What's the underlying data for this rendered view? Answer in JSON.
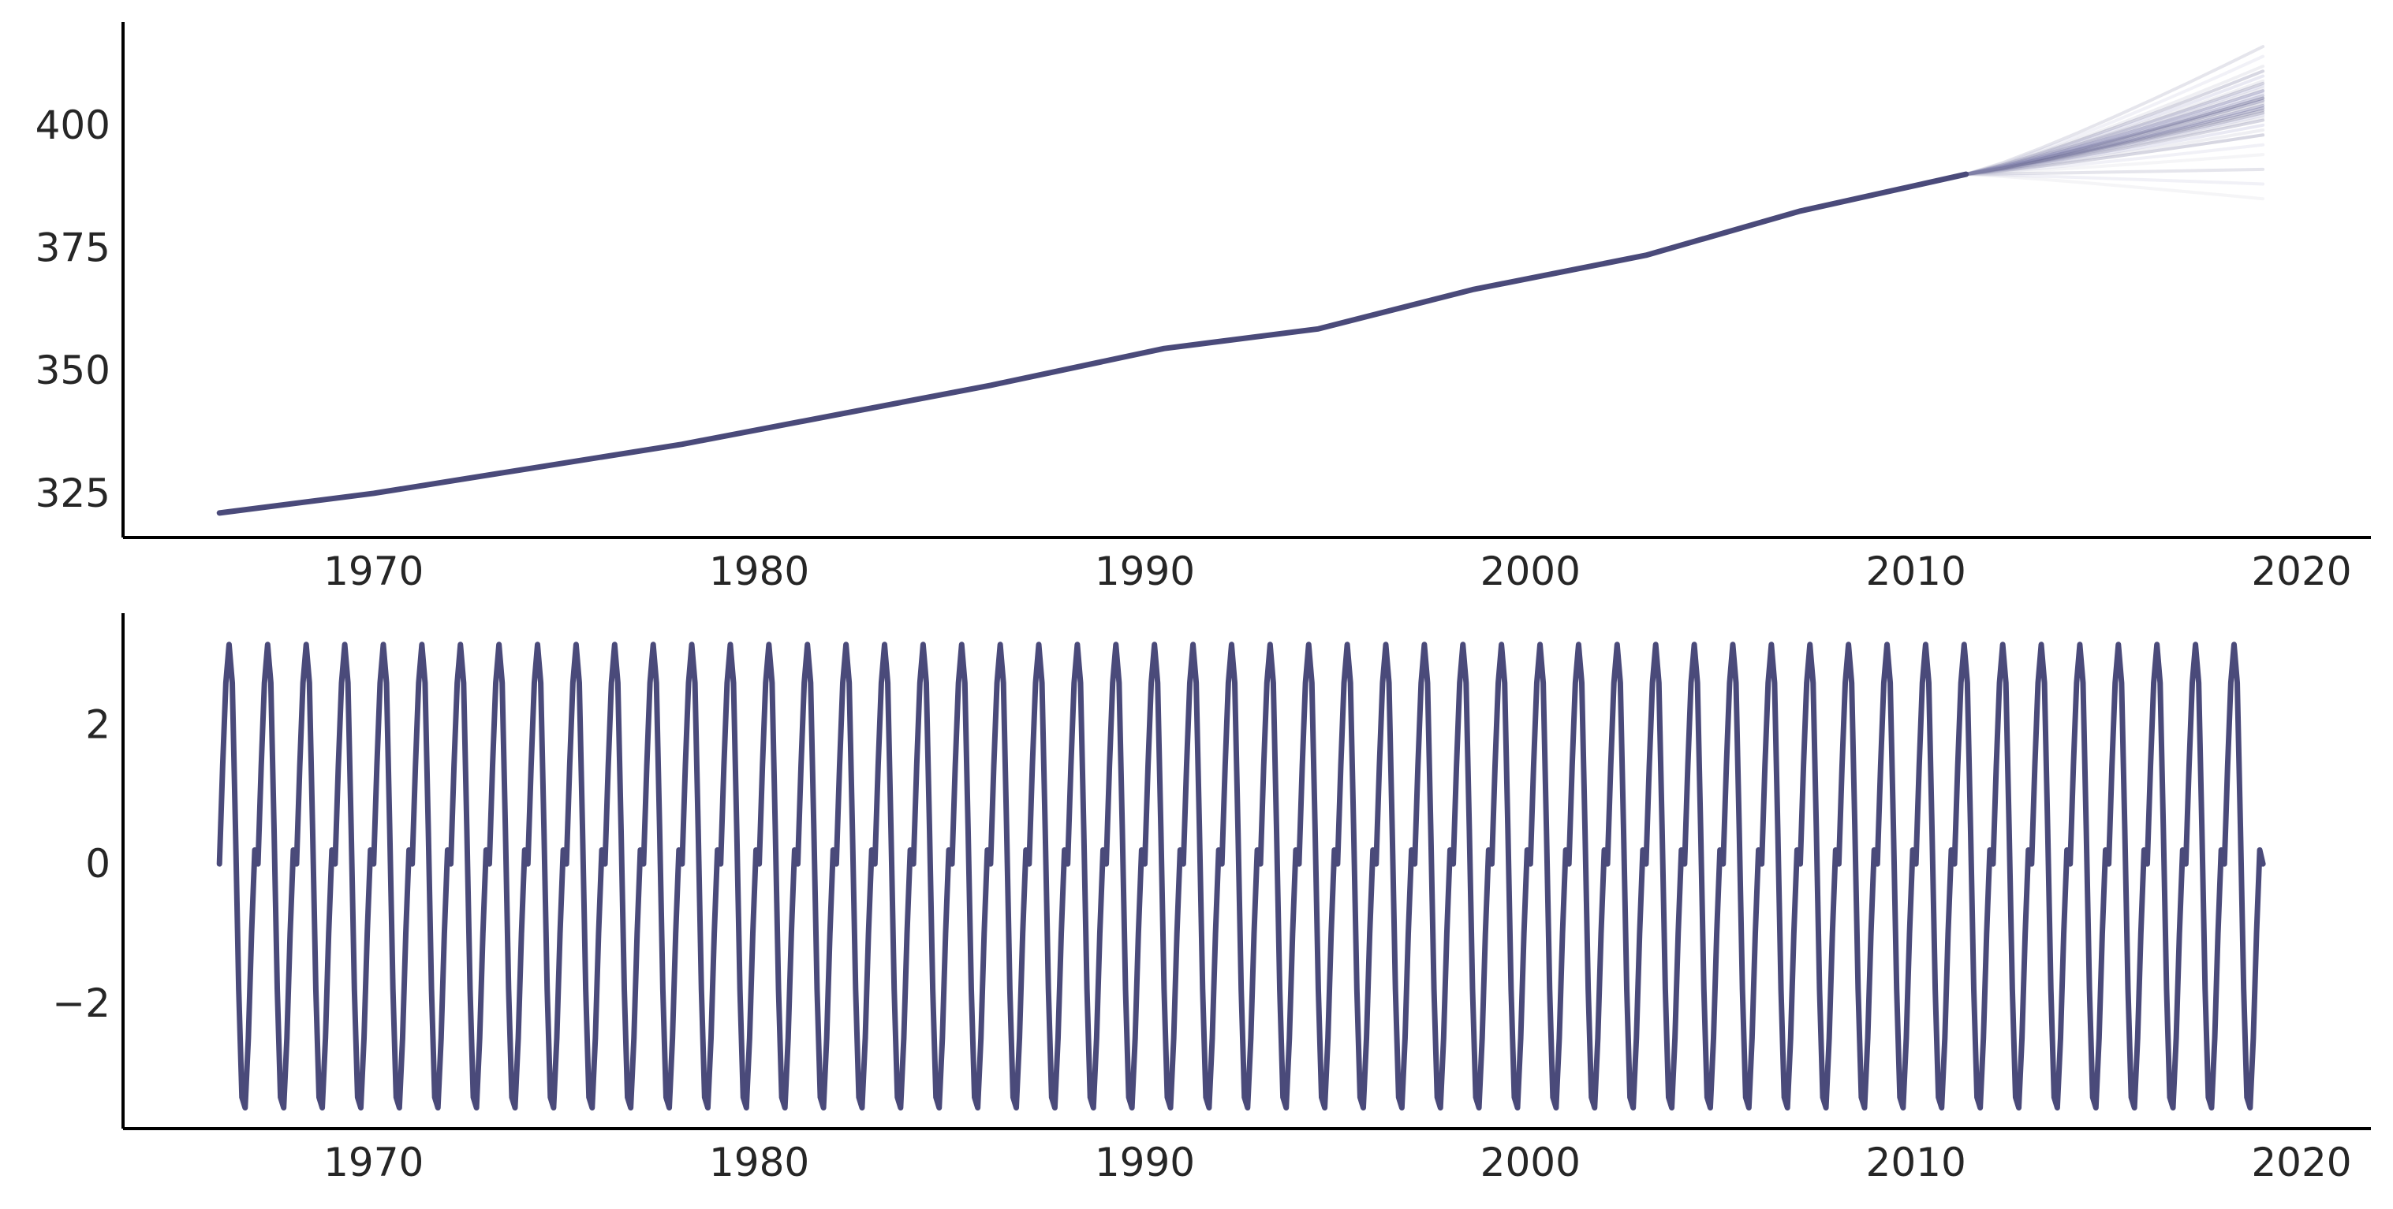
{
  "chart_data": [
    {
      "type": "line",
      "title": "",
      "xlabel": "",
      "ylabel": "",
      "xlim": [
        1963.5,
        2021.8
      ],
      "ylim": [
        316,
        421
      ],
      "xticks": [
        1970,
        1980,
        1990,
        2000,
        2010,
        2020
      ],
      "yticks": [
        325,
        350,
        375,
        400
      ],
      "xtick_labels": [
        "1970",
        "1980",
        "1990",
        "2000",
        "2010",
        "2020"
      ],
      "ytick_labels": [
        "325",
        "350",
        "375",
        "400"
      ],
      "grid": false,
      "line_color": "#4a4a7a",
      "forecast_colors": [
        "#4a4a7a",
        "#9a9ac8",
        "#b8b8c8"
      ],
      "series": [
        {
          "x": [
            1966.0,
            1970.0,
            1974.0,
            1978.0,
            1982.0,
            1986.0,
            1990.5,
            1994.5,
            1998.5,
            2003.0,
            2007.0,
            2011.3
          ],
          "y": [
            321.0,
            325.0,
            330.0,
            335.0,
            341.0,
            347.0,
            354.5,
            358.5,
            366.5,
            373.5,
            382.5,
            390.0
          ]
        }
      ],
      "forecast": {
        "x_start": 2011.3,
        "x_end": 2019.0,
        "y_start": 390.0,
        "y_end_values": [
          416,
          414,
          412,
          411,
          410,
          409,
          408.5,
          408,
          407.5,
          407,
          406.5,
          406,
          405.5,
          405,
          404.5,
          404,
          403.5,
          403,
          402.5,
          402,
          401.5,
          401,
          400,
          399,
          398,
          396,
          394,
          391,
          388,
          385,
          405,
          404,
          406,
          403,
          407,
          404.5,
          405.5,
          406,
          402.5,
          403.5
        ]
      }
    },
    {
      "type": "line",
      "title": "",
      "xlabel": "",
      "ylabel": "",
      "xlim": [
        1963.5,
        2021.8
      ],
      "ylim": [
        -3.8,
        3.6
      ],
      "xticks": [
        1970,
        1980,
        1990,
        2000,
        2010,
        2020
      ],
      "yticks": [
        -2,
        0,
        2
      ],
      "xtick_labels": [
        "1970",
        "1980",
        "1990",
        "2000",
        "2010",
        "2020"
      ],
      "ytick_labels": [
        "−2",
        "0",
        "2"
      ],
      "grid": false,
      "line_color": "#4a4a7a",
      "series": [
        {
          "x_start": 1966.0,
          "x_end": 2019.0,
          "period_years": 1.0,
          "one_cycle_y": [
            0.0,
            1.4,
            2.6,
            3.15,
            2.6,
            0.5,
            -1.8,
            -3.35,
            -3.5,
            -2.5,
            -1.0,
            0.2
          ]
        }
      ]
    }
  ]
}
